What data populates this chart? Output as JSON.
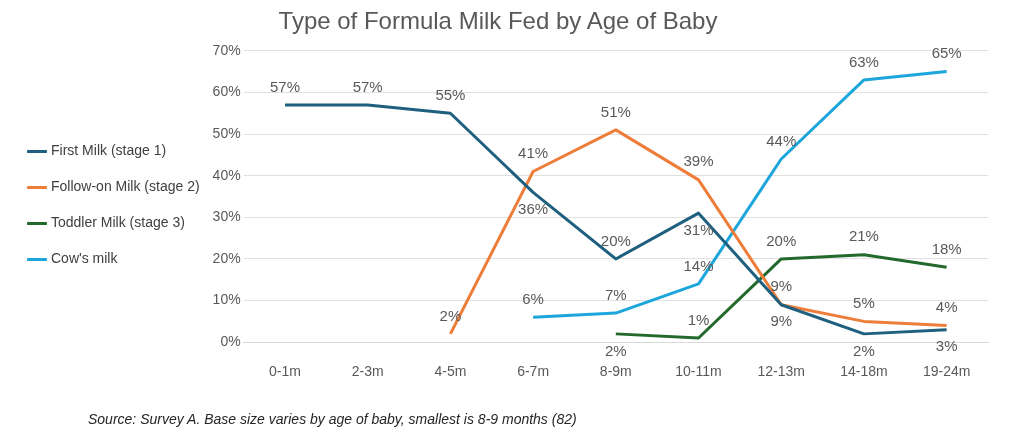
{
  "chart_data": {
    "type": "line",
    "title": "Type of Formula Milk Fed by Age of Baby",
    "categories": [
      "0-1m",
      "2-3m",
      "4-5m",
      "6-7m",
      "8-9m",
      "10-11m",
      "12-13m",
      "14-18m",
      "19-24m"
    ],
    "series": [
      {
        "name": "First Milk (stage 1)",
        "color": "#1f5f7f",
        "values": [
          57,
          57,
          55,
          36,
          20,
          31,
          9,
          2,
          3
        ],
        "value_labels": [
          "57%",
          "57%",
          "55%",
          "36%",
          "20%",
          "31%",
          "9%",
          "2%",
          "3%"
        ]
      },
      {
        "name": "Follow-on Milk (stage 2)",
        "color": "#ee7d3a",
        "values": [
          null,
          null,
          2,
          41,
          51,
          39,
          9,
          5,
          4
        ],
        "value_labels": [
          null,
          null,
          "2%",
          "41%",
          "51%",
          "39%",
          "9%",
          "5%",
          "4%"
        ]
      },
      {
        "name": "Toddler Milk (stage 3)",
        "color": "#23692c",
        "values": [
          null,
          null,
          null,
          null,
          2,
          1,
          20,
          21,
          18
        ],
        "value_labels": [
          null,
          null,
          null,
          null,
          "2%",
          "1%",
          "20%",
          "21%",
          "18%"
        ]
      },
      {
        "name": "Cow's milk",
        "color": "#1ca6dc",
        "values": [
          null,
          null,
          null,
          6,
          7,
          14,
          44,
          63,
          65
        ],
        "value_labels": [
          null,
          null,
          null,
          "6%",
          "7%",
          "14%",
          "44%",
          "63%",
          "65%"
        ]
      }
    ],
    "ylim": [
      0,
      70
    ],
    "yticks": [
      {
        "value": 0,
        "label": "0%"
      },
      {
        "value": 10,
        "label": "10%"
      },
      {
        "value": 20,
        "label": "20%"
      },
      {
        "value": 30,
        "label": "30%"
      },
      {
        "value": 40,
        "label": "40%"
      },
      {
        "value": 50,
        "label": "50%"
      },
      {
        "value": 60,
        "label": "60%"
      },
      {
        "value": 70,
        "label": "70%"
      }
    ],
    "grid": "y",
    "legend": "left",
    "marker": "none",
    "line_style": "solid",
    "annotations": [
      "Source: Survey A. Base size varies by age of baby, smallest is 8-9 months (82)"
    ]
  }
}
